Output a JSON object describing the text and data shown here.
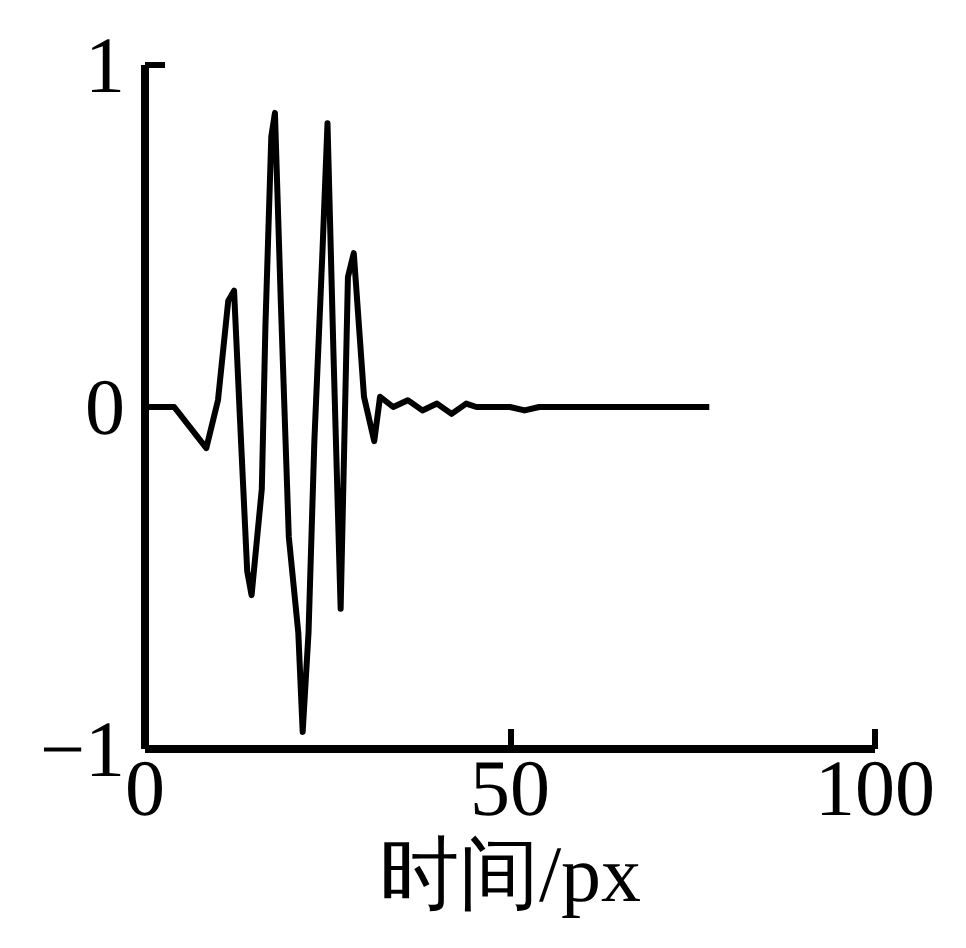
{
  "chart_data": {
    "type": "line",
    "xlabel": "时间/px",
    "x": [
      0,
      4,
      8.4,
      10,
      11.4,
      12.2,
      13,
      14,
      14.6,
      16,
      16.5,
      17.3,
      17.8,
      18.6,
      19.7,
      21,
      21.6,
      22.4,
      23.2,
      24.3,
      25,
      25.8,
      26.8,
      27.8,
      28.6,
      30,
      31.4,
      32.2,
      34,
      36,
      38,
      40,
      42,
      44,
      45.4,
      50,
      52,
      54,
      77.3
    ],
    "series": [
      {
        "color": "#000000",
        "values": [
          0,
          0,
          -0.12,
          0.02,
          0.31,
          0.34,
          -0.03,
          -0.48,
          -0.55,
          -0.24,
          0.24,
          0.79,
          0.86,
          0.31,
          -0.38,
          -0.66,
          -0.95,
          -0.66,
          -0.1,
          0.45,
          0.83,
          0.17,
          -0.59,
          0.38,
          0.45,
          0.03,
          -0.1,
          0.03,
          0,
          0.02,
          -0.01,
          0.01,
          -0.02,
          0.01,
          0,
          0,
          -0.01,
          0,
          0
        ]
      }
    ],
    "xlim": [
      0,
      100
    ],
    "ylim": [
      -1,
      1
    ],
    "xticks": [
      0,
      50,
      100
    ],
    "yticks": [
      -1,
      0,
      1
    ],
    "grid": false,
    "marker": "none",
    "line_style": "solid"
  }
}
